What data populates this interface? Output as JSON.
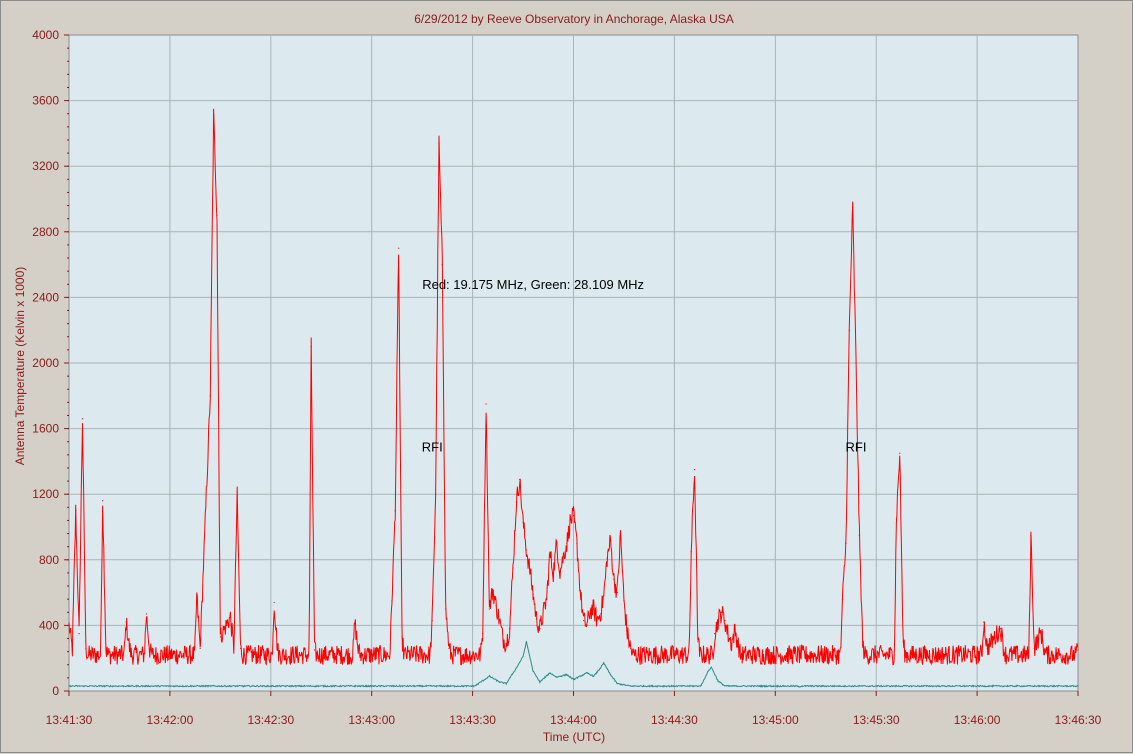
{
  "chart_data": {
    "type": "line",
    "title": "6/29/2012  by  Reeve Observatory  in  Anchorage, Alaska  USA",
    "xlabel": "Time (UTC)",
    "ylabel": "Antenna Temperature (Kelvin x 1000)",
    "x_ticks": [
      "13:41:30",
      "13:42:00",
      "13:42:30",
      "13:43:00",
      "13:43:30",
      "13:44:00",
      "13:44:30",
      "13:45:00",
      "13:45:30",
      "13:46:00",
      "13:46:30"
    ],
    "y_ticks": [
      "0",
      "400",
      "800",
      "1200",
      "1600",
      "2000",
      "2400",
      "2800",
      "3200",
      "3600",
      "4000"
    ],
    "xlim": [
      "13:41:30",
      "13:46:30"
    ],
    "ylim": [
      0,
      4000
    ],
    "grid": true,
    "plot_background": "#dce9ee",
    "annotations": [
      {
        "text": "Red: 19.175 MHz, Green: 28.109 MHz",
        "x": "13:43:48",
        "y": 2450
      },
      {
        "text": "RFI",
        "x": "13:43:18",
        "y": 1460
      },
      {
        "text": "RFI",
        "x": "13:45:24",
        "y": 1460
      }
    ],
    "series": [
      {
        "color": "#ff0000",
        "baseline": 220,
        "noise": 60,
        "points": [
          [
            "13:41:30",
            400
          ],
          [
            "13:41:31",
            250
          ],
          [
            "13:41:32",
            1100
          ],
          [
            "13:41:33",
            350
          ],
          [
            "13:41:34",
            1660
          ],
          [
            "13:41:35",
            260
          ],
          [
            "13:41:40",
            1160
          ],
          [
            "13:41:41",
            250
          ],
          [
            "13:41:47",
            420
          ],
          [
            "13:41:48",
            260
          ],
          [
            "13:41:53",
            470
          ],
          [
            "13:41:54",
            250
          ],
          [
            "13:42:08",
            580
          ],
          [
            "13:42:09",
            260
          ],
          [
            "13:42:12",
            1800
          ],
          [
            "13:42:13",
            3510
          ],
          [
            "13:42:14",
            2900
          ],
          [
            "13:42:15",
            330
          ],
          [
            "13:42:18",
            450
          ],
          [
            "13:42:19",
            260
          ],
          [
            "13:42:20",
            1190
          ],
          [
            "13:42:21",
            260
          ],
          [
            "13:42:31",
            540
          ],
          [
            "13:42:32",
            250
          ],
          [
            "13:42:42",
            2100
          ],
          [
            "13:42:43",
            250
          ],
          [
            "13:42:55",
            420
          ],
          [
            "13:42:56",
            250
          ],
          [
            "13:43:06",
            550
          ],
          [
            "13:43:07",
            1100
          ],
          [
            "13:43:08",
            2700
          ],
          [
            "13:43:09",
            330
          ],
          [
            "13:43:18",
            430
          ],
          [
            "13:43:19",
            1200
          ],
          [
            "13:43:20",
            3340
          ],
          [
            "13:43:21",
            2600
          ],
          [
            "13:43:22",
            500
          ],
          [
            "13:43:23",
            260
          ],
          [
            "13:43:33",
            350
          ],
          [
            "13:43:34",
            1750
          ],
          [
            "13:43:35",
            500
          ],
          [
            "13:43:36",
            620
          ],
          [
            "13:43:37",
            520
          ],
          [
            "13:43:38",
            430
          ],
          [
            "13:43:39",
            320
          ],
          [
            "13:43:40",
            290
          ],
          [
            "13:43:41",
            380
          ],
          [
            "13:43:42",
            750
          ],
          [
            "13:43:43",
            1150
          ],
          [
            "13:43:44",
            1290
          ],
          [
            "13:43:45",
            1030
          ],
          [
            "13:43:46",
            860
          ],
          [
            "13:43:47",
            740
          ],
          [
            "13:43:48",
            590
          ],
          [
            "13:43:49",
            440
          ],
          [
            "13:43:50",
            380
          ],
          [
            "13:43:52",
            560
          ],
          [
            "13:43:53",
            840
          ],
          [
            "13:43:54",
            720
          ],
          [
            "13:43:55",
            900
          ],
          [
            "13:43:56",
            730
          ],
          [
            "13:43:57",
            820
          ],
          [
            "13:43:58",
            900
          ],
          [
            "13:43:59",
            1030
          ],
          [
            "13:44:00",
            1070
          ],
          [
            "13:44:01",
            900
          ],
          [
            "13:44:02",
            610
          ],
          [
            "13:44:03",
            430
          ],
          [
            "13:44:04",
            400
          ],
          [
            "13:44:05",
            490
          ],
          [
            "13:44:06",
            500
          ],
          [
            "13:44:07",
            430
          ],
          [
            "13:44:08",
            470
          ],
          [
            "13:44:09",
            580
          ],
          [
            "13:44:10",
            810
          ],
          [
            "13:44:11",
            920
          ],
          [
            "13:44:12",
            680
          ],
          [
            "13:44:13",
            600
          ],
          [
            "13:44:14",
            960
          ],
          [
            "13:44:15",
            550
          ],
          [
            "13:44:16",
            350
          ],
          [
            "13:44:17",
            260
          ],
          [
            "13:44:35",
            850
          ],
          [
            "13:44:36",
            1350
          ],
          [
            "13:44:37",
            300
          ],
          [
            "13:44:42",
            350
          ],
          [
            "13:44:43",
            430
          ],
          [
            "13:44:44",
            480
          ],
          [
            "13:44:45",
            430
          ],
          [
            "13:44:46",
            340
          ],
          [
            "13:44:47",
            290
          ],
          [
            "13:44:48",
            370
          ],
          [
            "13:44:49",
            280
          ],
          [
            "13:45:20",
            560
          ],
          [
            "13:45:21",
            900
          ],
          [
            "13:45:22",
            2200
          ],
          [
            "13:45:23",
            2950
          ],
          [
            "13:45:24",
            2000
          ],
          [
            "13:45:25",
            950
          ],
          [
            "13:45:26",
            280
          ],
          [
            "13:45:36",
            1050
          ],
          [
            "13:45:37",
            1450
          ],
          [
            "13:45:38",
            300
          ],
          [
            "13:46:02",
            420
          ],
          [
            "13:46:03",
            260
          ],
          [
            "13:46:07",
            380
          ],
          [
            "13:46:08",
            250
          ],
          [
            "13:46:16",
            950
          ],
          [
            "13:46:17",
            260
          ],
          [
            "13:46:19",
            360
          ],
          [
            "13:46:20",
            250
          ],
          [
            "13:46:30",
            250
          ]
        ]
      },
      {
        "color": "#2e8b8b",
        "baseline": 30,
        "noise": 4,
        "points": [
          [
            "13:41:30",
            30
          ],
          [
            "13:43:31",
            35
          ],
          [
            "13:43:35",
            90
          ],
          [
            "13:43:38",
            55
          ],
          [
            "13:43:40",
            45
          ],
          [
            "13:43:43",
            140
          ],
          [
            "13:43:45",
            210
          ],
          [
            "13:43:46",
            300
          ],
          [
            "13:43:48",
            120
          ],
          [
            "13:43:50",
            55
          ],
          [
            "13:43:53",
            110
          ],
          [
            "13:43:55",
            85
          ],
          [
            "13:43:58",
            100
          ],
          [
            "13:44:00",
            70
          ],
          [
            "13:44:04",
            110
          ],
          [
            "13:44:06",
            90
          ],
          [
            "13:44:08",
            140
          ],
          [
            "13:44:09",
            170
          ],
          [
            "13:44:11",
            100
          ],
          [
            "13:44:13",
            45
          ],
          [
            "13:44:17",
            30
          ],
          [
            "13:44:38",
            35
          ],
          [
            "13:44:40",
            120
          ],
          [
            "13:44:41",
            145
          ],
          [
            "13:44:43",
            60
          ],
          [
            "13:44:45",
            32
          ],
          [
            "13:45:06",
            30
          ],
          [
            "13:45:07",
            25
          ],
          [
            "13:45:08",
            30
          ],
          [
            "13:46:30",
            30
          ]
        ]
      }
    ]
  }
}
